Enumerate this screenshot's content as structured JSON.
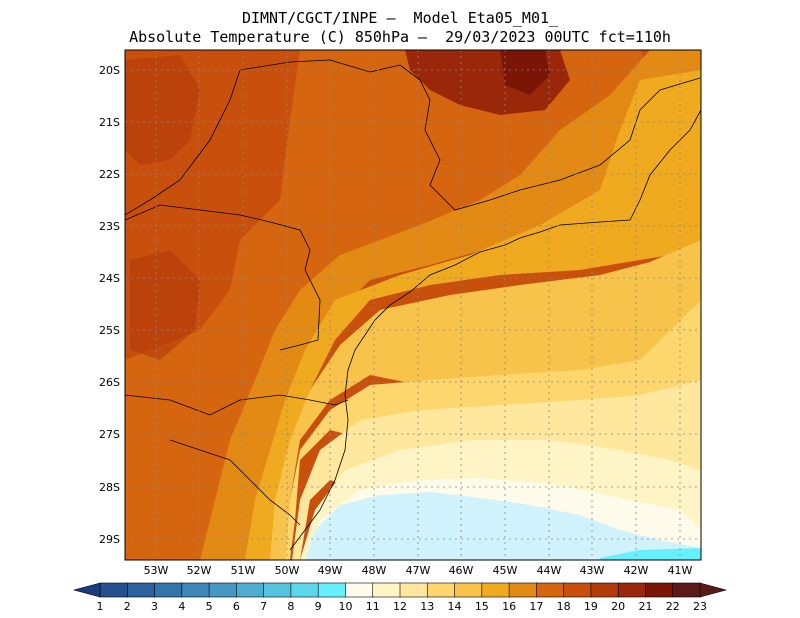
{
  "header": {
    "line1": "DIMNT/CGCT/INPE –  Model Eta05_M01_",
    "line2": "Absolute Temperature (C) 850hPa –  29/03/2023 00UTC fct=110h"
  },
  "map": {
    "lat_labels": [
      "20S",
      "21S",
      "22S",
      "23S",
      "24S",
      "25S",
      "26S",
      "27S",
      "28S",
      "29S"
    ],
    "lon_labels": [
      "53W",
      "52W",
      "51W",
      "50W",
      "49W",
      "48W",
      "47W",
      "46W",
      "45W",
      "44W",
      "43W",
      "42W",
      "41W"
    ],
    "temperature_region_note": ""
  },
  "colorbar": {
    "labels": [
      "1",
      "2",
      "3",
      "4",
      "5",
      "6",
      "7",
      "8",
      "9",
      "10",
      "11",
      "12",
      "13",
      "14",
      "15",
      "16",
      "17",
      "18",
      "19",
      "20",
      "21",
      "22",
      "23"
    ],
    "colors": [
      "#1d3b7f",
      "#24508f",
      "#2b619f",
      "#3375ab",
      "#3d88b8",
      "#4698c3",
      "#4fadd0",
      "#55c3de",
      "#5cd8ec",
      "#66f0fc",
      "#fffbea",
      "#fff4c6",
      "#ffe79e",
      "#fdd66e",
      "#f8c34a",
      "#efaa1f",
      "#e28a14",
      "#d5650f",
      "#c9500c",
      "#b33a0b",
      "#9a2709",
      "#7b1607",
      "#5a1a1a"
    ]
  }
}
